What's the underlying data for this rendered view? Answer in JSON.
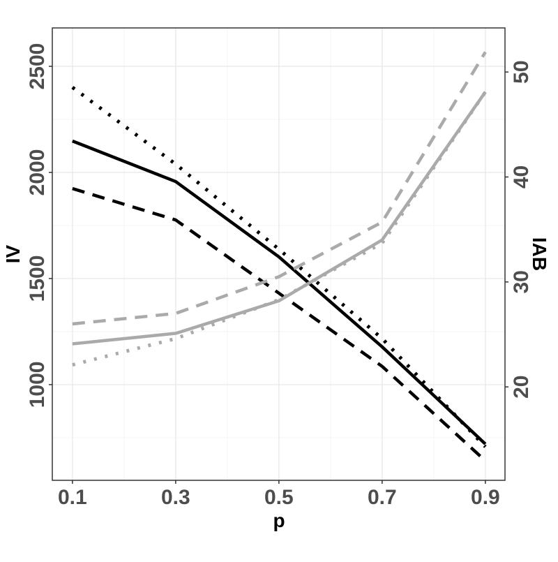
{
  "chart_data": {
    "type": "line",
    "title": "",
    "xlabel": "p",
    "ylabel_left": "IV",
    "ylabel_right": "IAB",
    "x": [
      0.1,
      0.3,
      0.5,
      0.7,
      0.9
    ],
    "xlim": [
      0.061,
      0.938
    ],
    "ylim_left": [
      549,
      2681
    ],
    "ylim_right": [
      11.1,
      54.2
    ],
    "x_ticks": [
      "0.1",
      "0.3",
      "0.5",
      "0.7",
      "0.9"
    ],
    "y_ticks_left": [
      "1000",
      "1500",
      "2000",
      "2500"
    ],
    "y_ticks_right": [
      "20",
      "30",
      "40",
      "50"
    ],
    "grid": true,
    "legend": "none",
    "series": [
      {
        "axis": "left",
        "color": "#000000",
        "linetype": "solid",
        "values": [
          2148,
          1957,
          1602,
          1178,
          720
        ]
      },
      {
        "axis": "left",
        "color": "#000000",
        "linetype": "dotted",
        "values": [
          2401,
          2039,
          1638,
          1217,
          707
        ]
      },
      {
        "axis": "left",
        "color": "#000000",
        "linetype": "dashed",
        "values": [
          1924,
          1776,
          1431,
          1086,
          641
        ]
      },
      {
        "axis": "right",
        "color": "#aaaaaa",
        "linetype": "solid",
        "values": [
          24.1,
          25.1,
          28.2,
          34.0,
          48.1
        ]
      },
      {
        "axis": "right",
        "color": "#aaaaaa",
        "linetype": "dashed",
        "values": [
          26.0,
          27.0,
          30.5,
          35.7,
          51.9
        ]
      },
      {
        "axis": "right",
        "color": "#aaaaaa",
        "linetype": "dotted",
        "values": [
          22.1,
          24.6,
          28.3,
          33.7,
          48.1
        ]
      }
    ]
  }
}
